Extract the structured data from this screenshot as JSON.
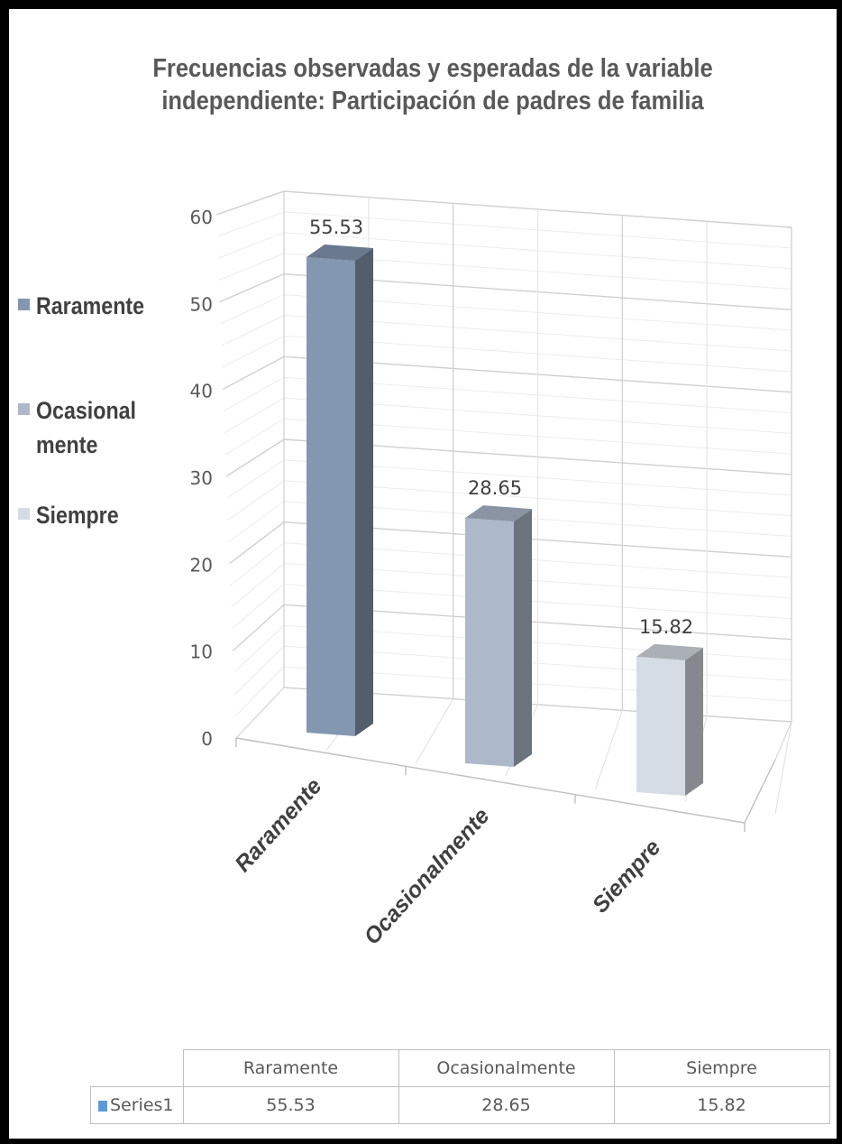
{
  "chart_data": {
    "type": "bar",
    "title": "Frecuencias observadas y esperadas de la variable independiente: Participación de padres de familia",
    "categories": [
      "Raramente",
      "Ocasionalmente",
      "Siempre"
    ],
    "series": [
      {
        "name": "Series1",
        "values": [
          55.53,
          28.65,
          15.82
        ]
      }
    ],
    "data_labels": [
      "55.53",
      "28.65",
      "15.82"
    ],
    "ylim": [
      0,
      60
    ],
    "yticks": [
      0,
      10,
      20,
      30,
      40,
      50,
      60
    ],
    "xlabel": "",
    "ylabel": "",
    "grid": true,
    "style": "3d-column",
    "legend": {
      "placement": "left",
      "items": [
        {
          "label": "Raramente",
          "color": "#8497b0"
        },
        {
          "label": "Ocasional mente",
          "color": "#adb9ca"
        },
        {
          "label": "Siempre",
          "color": "#d6dce5"
        }
      ]
    },
    "bar_colors": [
      "#8497b0",
      "#adb9ca",
      "#d6dce5"
    ],
    "data_table": {
      "headers": [
        "Raramente",
        "Ocasionalmente",
        "Siempre"
      ],
      "row_label": "Series1",
      "row_color": "#5b9bd5",
      "values": [
        "55.53",
        "28.65",
        "15.82"
      ]
    }
  }
}
